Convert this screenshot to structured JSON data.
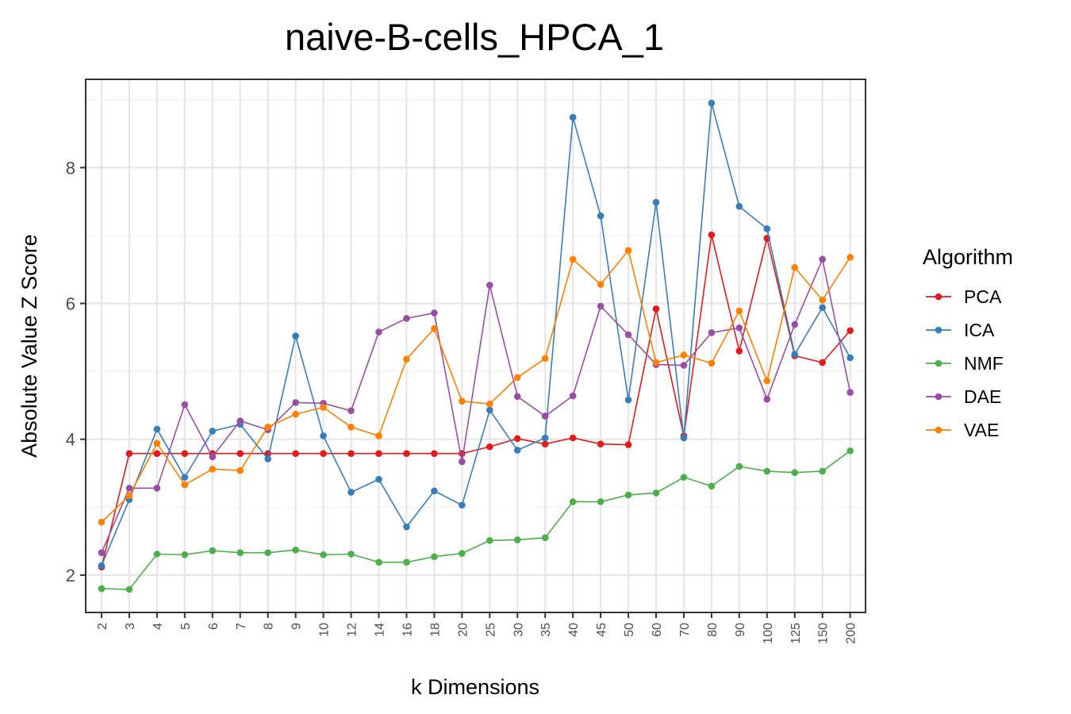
{
  "chart_data": {
    "type": "line",
    "title": "naive-B-cells_HPCA_1",
    "xlabel": "k Dimensions",
    "ylabel": "Absolute Value Z Score",
    "categories": [
      "2",
      "3",
      "4",
      "5",
      "6",
      "7",
      "8",
      "9",
      "10",
      "12",
      "14",
      "16",
      "18",
      "20",
      "25",
      "30",
      "35",
      "40",
      "45",
      "50",
      "60",
      "70",
      "80",
      "90",
      "100",
      "125",
      "150",
      "200"
    ],
    "ylim": [
      1.45,
      9.3
    ],
    "yticks": [
      2,
      4,
      6,
      8
    ],
    "ytick_labels": [
      "2",
      "4",
      "6",
      "8"
    ],
    "grid": true,
    "legend": {
      "title": "Algorithm",
      "position": "right"
    },
    "series": [
      {
        "name": "PCA",
        "color": "#E41A1C",
        "values": [
          2.12,
          3.79,
          3.79,
          3.79,
          3.79,
          3.79,
          3.79,
          3.79,
          3.79,
          3.79,
          3.79,
          3.79,
          3.79,
          3.79,
          3.89,
          4.01,
          3.93,
          4.02,
          3.93,
          3.92,
          5.92,
          4.05,
          7.01,
          5.3,
          6.96,
          5.23,
          5.13,
          5.6
        ]
      },
      {
        "name": "ICA",
        "color": "#377EB8",
        "values": [
          2.14,
          3.11,
          4.15,
          3.44,
          4.12,
          4.22,
          3.71,
          5.52,
          4.05,
          3.22,
          3.41,
          2.71,
          3.24,
          3.03,
          4.43,
          3.84,
          4.02,
          8.74,
          7.29,
          4.58,
          7.49,
          4.02,
          8.95,
          7.43,
          7.1,
          5.25,
          5.94,
          5.2
        ]
      },
      {
        "name": "NMF",
        "color": "#4DAF4A",
        "values": [
          1.8,
          1.79,
          2.31,
          2.3,
          2.36,
          2.33,
          2.33,
          2.37,
          2.3,
          2.31,
          2.19,
          2.19,
          2.27,
          2.32,
          2.51,
          2.52,
          2.55,
          3.08,
          3.08,
          3.18,
          3.21,
          3.44,
          3.31,
          3.6,
          3.53,
          3.51,
          3.53,
          3.83
        ]
      },
      {
        "name": "DAE",
        "color": "#984EA3",
        "values": [
          2.33,
          3.28,
          3.28,
          4.51,
          3.74,
          4.27,
          4.14,
          4.54,
          4.53,
          4.42,
          5.58,
          5.78,
          5.86,
          3.67,
          6.27,
          4.63,
          4.34,
          4.64,
          5.96,
          5.54,
          5.1,
          5.09,
          5.57,
          5.64,
          4.59,
          5.69,
          6.65,
          4.69
        ]
      },
      {
        "name": "VAE",
        "color": "#FF7F00",
        "values": [
          2.78,
          3.17,
          3.94,
          3.33,
          3.56,
          3.54,
          4.18,
          4.37,
          4.47,
          4.18,
          4.05,
          5.18,
          5.63,
          4.56,
          4.52,
          4.91,
          5.19,
          6.65,
          6.28,
          6.78,
          5.13,
          5.24,
          5.12,
          5.89,
          4.86,
          6.53,
          6.05,
          6.68
        ]
      }
    ]
  }
}
